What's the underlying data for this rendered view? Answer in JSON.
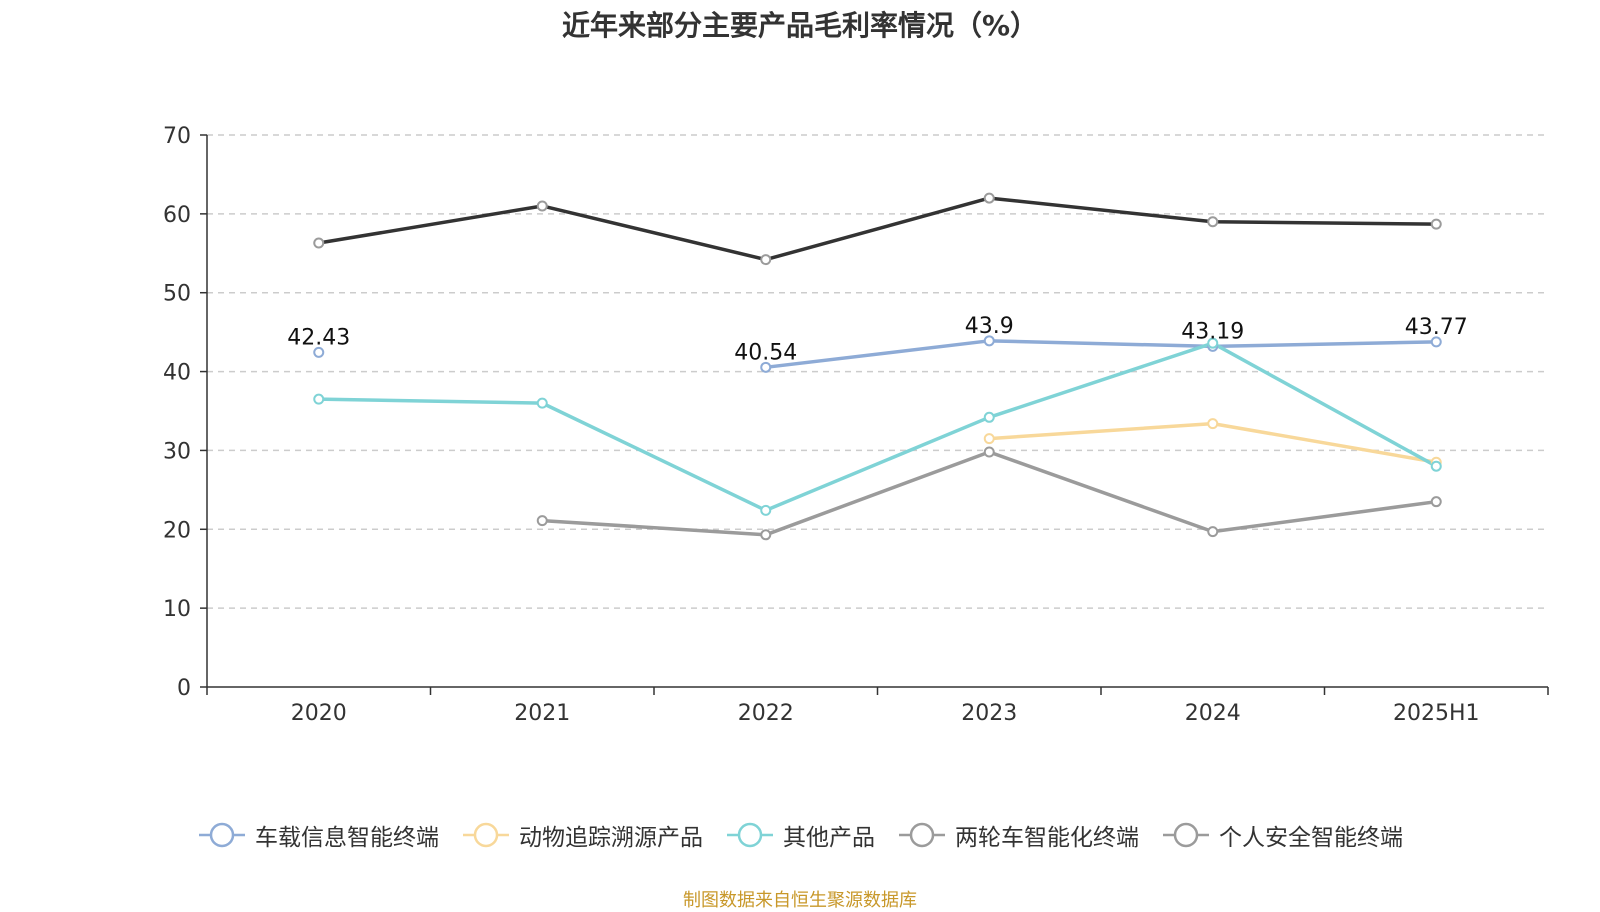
{
  "chart_data": {
    "type": "line",
    "title": "近年来部分主要产品毛利率情况（%）",
    "categories": [
      "2020",
      "2021",
      "2022",
      "2023",
      "2024",
      "2025H1"
    ],
    "ylim": [
      0,
      70
    ],
    "yticks": [
      0,
      10,
      20,
      30,
      40,
      50,
      60,
      70
    ],
    "grid": true,
    "legend_position": "bottom",
    "series": [
      {
        "name": "车载信息智能终端",
        "color": "#8eabd6",
        "values": [
          42.43,
          null,
          40.54,
          43.9,
          43.19,
          43.77
        ],
        "labels": [
          "42.43",
          null,
          "40.54",
          "43.9",
          "43.19",
          "43.77"
        ]
      },
      {
        "name": "动物追踪溯源产品",
        "color": "#f8d89a",
        "values": [
          null,
          null,
          null,
          31.5,
          33.4,
          28.5
        ],
        "labels": [
          null,
          null,
          null,
          null,
          null,
          null
        ]
      },
      {
        "name": "其他产品",
        "color": "#7fd3d6",
        "values": [
          36.5,
          36.0,
          22.4,
          34.2,
          43.6,
          28.0
        ],
        "labels": [
          null,
          null,
          null,
          null,
          null,
          null
        ]
      },
      {
        "name": "两轮车智能化终端",
        "color": "#9b9b9b",
        "values": [
          null,
          21.1,
          19.3,
          29.8,
          19.7,
          23.5
        ],
        "labels": [
          null,
          null,
          null,
          null,
          null,
          null
        ]
      },
      {
        "name": "个人安全智能终端",
        "color": "#333333",
        "values": [
          56.3,
          61.0,
          54.2,
          62.0,
          59.0,
          58.7
        ],
        "labels": [
          null,
          null,
          null,
          null,
          null,
          null
        ]
      }
    ],
    "legend_colors": [
      "#8eabd6",
      "#f8d89a",
      "#7fd3d6",
      "#9b9b9b",
      "#9b9b9b"
    ]
  },
  "source_text": "制图数据来自恒生聚源数据库"
}
